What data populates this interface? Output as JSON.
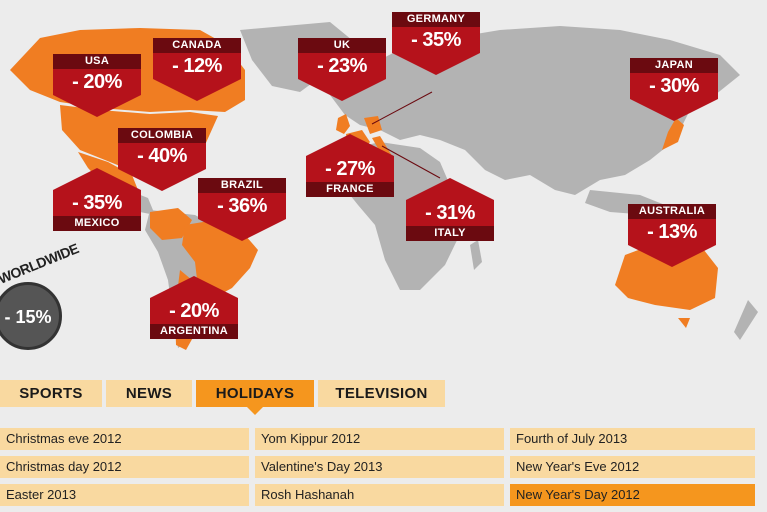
{
  "chart_data": {
    "type": "map",
    "worldwide": {
      "label": "WORLDWIDE",
      "value": "- 15%"
    },
    "countries": [
      {
        "name": "USA",
        "value": "- 20%"
      },
      {
        "name": "CANADA",
        "value": "- 12%"
      },
      {
        "name": "UK",
        "value": "- 23%"
      },
      {
        "name": "GERMANY",
        "value": "- 35%"
      },
      {
        "name": "JAPAN",
        "value": "- 30%"
      },
      {
        "name": "COLOMBIA",
        "value": "- 40%"
      },
      {
        "name": "MEXICO",
        "value": "- 35%"
      },
      {
        "name": "BRAZIL",
        "value": "- 36%"
      },
      {
        "name": "FRANCE",
        "value": "- 27%"
      },
      {
        "name": "ITALY",
        "value": "- 31%"
      },
      {
        "name": "AUSTRALIA",
        "value": "- 13%"
      },
      {
        "name": "ARGENTINA",
        "value": "- 20%"
      }
    ]
  },
  "colors": {
    "highlight_country": "#f07d22",
    "other_land": "#b3b3b3",
    "marker": "#b5121b",
    "marker_label": "#6b0a10",
    "tab": "#f9d9a0",
    "tab_active": "#f5961e"
  },
  "tabs": [
    {
      "label": "SPORTS",
      "active": false
    },
    {
      "label": "NEWS",
      "active": false
    },
    {
      "label": "HOLIDAYS",
      "active": true
    },
    {
      "label": "TELEVISION",
      "active": false
    }
  ],
  "holidays": {
    "col1": [
      "Christmas eve 2012",
      "Christmas day 2012",
      "Easter 2013"
    ],
    "col2": [
      "Yom Kippur 2012",
      "Valentine's Day 2013",
      "Rosh Hashanah"
    ],
    "col3": [
      "Fourth of July 2013",
      "New Year's Eve 2012",
      "New Year's Day 2012"
    ],
    "selected": "New Year's Day 2012"
  }
}
